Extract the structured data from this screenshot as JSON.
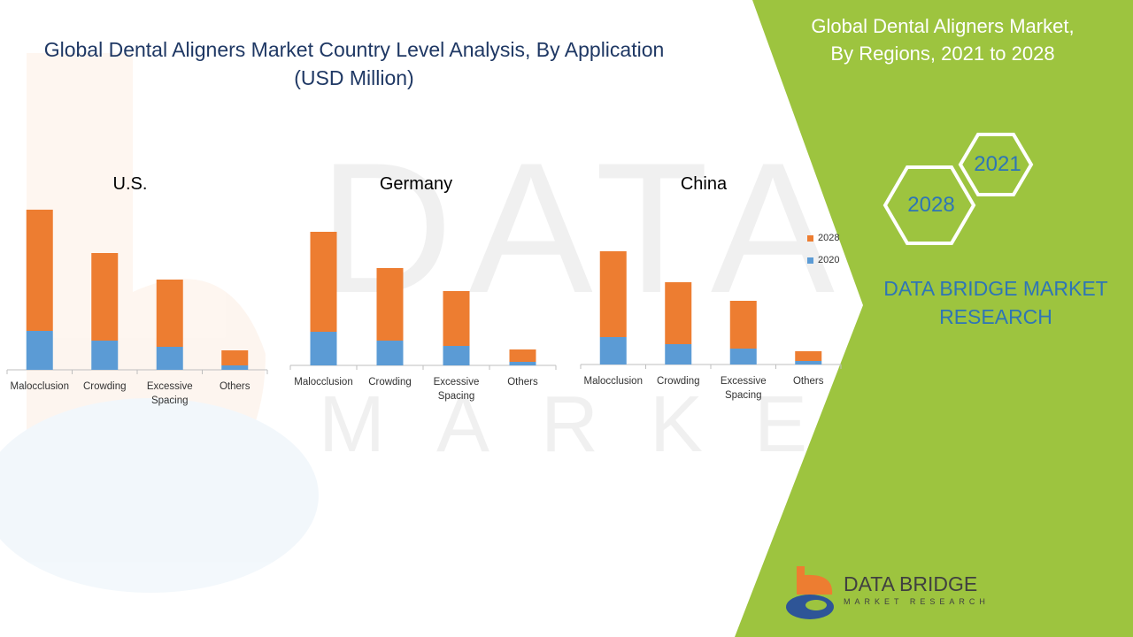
{
  "title_line1": "Global Dental Aligners Market Country Level Analysis, By Application",
  "title_line2": "(USD Million)",
  "side_title_line1": "Global Dental Aligners Market,",
  "side_title_line2": "By Regions, 2021 to 2028",
  "hex_labels": {
    "top": "2021",
    "bottom": "2028"
  },
  "brand_line1": "DATA BRIDGE MARKET",
  "brand_line2": "RESEARCH",
  "logo_name": "DATA BRIDGE",
  "logo_sub": "MARKET RESEARCH",
  "colors": {
    "green": "#9dc43f",
    "series_2028": "#ed7d31",
    "series_2020": "#5b9bd5",
    "title": "#1f3864",
    "brand": "#2e75b6"
  },
  "legend": [
    {
      "name": "2028",
      "color": "#ed7d31"
    },
    {
      "name": "2020",
      "color": "#5b9bd5"
    }
  ],
  "chart_data": [
    {
      "type": "bar",
      "stacked": true,
      "title": "U.S.",
      "categories": [
        "Malocclusion",
        "Crowding",
        "Excessive Spacing",
        "Others"
      ],
      "series": [
        {
          "name": "2020",
          "values": [
            44,
            33,
            26,
            5
          ]
        },
        {
          "name": "2028",
          "values": [
            137,
            99,
            76,
            17
          ]
        }
      ],
      "ylim": [
        0,
        181
      ]
    },
    {
      "type": "bar",
      "stacked": true,
      "title": "Germany",
      "categories": [
        "Malocclusion",
        "Crowding",
        "Excessive Spacing",
        "Others"
      ],
      "series": [
        {
          "name": "2020",
          "values": [
            38,
            28,
            22,
            4
          ]
        },
        {
          "name": "2028",
          "values": [
            113,
            82,
            62,
            14
          ]
        }
      ],
      "ylim": [
        0,
        181
      ]
    },
    {
      "type": "bar",
      "stacked": true,
      "title": "China",
      "categories": [
        "Malocclusion",
        "Crowding",
        "Excessive Spacing",
        "Others"
      ],
      "series": [
        {
          "name": "2020",
          "values": [
            31,
            23,
            18,
            4
          ]
        },
        {
          "name": "2028",
          "values": [
            97,
            70,
            54,
            11
          ]
        }
      ],
      "ylim": [
        0,
        181
      ]
    }
  ]
}
